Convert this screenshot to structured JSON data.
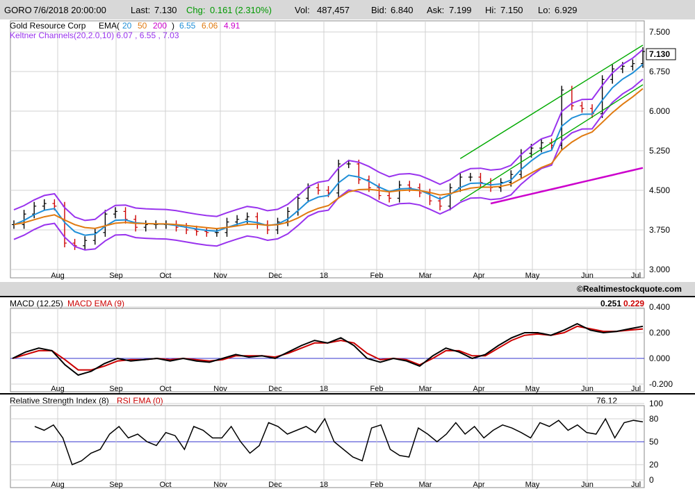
{
  "header": {
    "symbol": "GORO",
    "datetime": "7/6/2018 20:00:00",
    "last_label": "Last:",
    "last": "7.130",
    "chg_label": "Chg:",
    "chg": "0.161 (2.310%)",
    "vol_label": "Vol:",
    "vol": "487,457",
    "bid_label": "Bid:",
    "bid": "6.840",
    "ask_label": "Ask:",
    "ask": "7.199",
    "hi_label": "Hi:",
    "hi": "7.150",
    "lo_label": "Lo:",
    "lo": "6.929"
  },
  "colors": {
    "ema20": "#1f8fd8",
    "ema50": "#e07a10",
    "ema200": "#cc00cc",
    "keltner": "#9933ee",
    "channel": "#00aa00",
    "macd": "#000000",
    "macd_ema": "#cc0000",
    "baseline": "#3333cc",
    "header_bg": "#d8d8d8",
    "chg": "#009900",
    "up_bar": "#000000",
    "down_bar": "#cc0000"
  },
  "price_panel": {
    "company": "Gold Resource Corp",
    "ema_label": "EMA(",
    "ema_periods": [
      "20",
      "50",
      "200"
    ],
    "ema_values": [
      "6.55",
      "6.06",
      "4.91"
    ],
    "keltner_label": "Keltner Channels(20,2.0,10) 6.07 , 6.55 , 7.03",
    "last_price_tag": "7.130",
    "y_ticks": [
      "7.500",
      "6.750",
      "6.000",
      "5.250",
      "4.500",
      "3.750",
      "3.000"
    ],
    "watermark": "©Realtimestockquote.com"
  },
  "x_labels": [
    "Aug",
    "Sep",
    "Oct",
    "Nov",
    "Dec",
    "18",
    "Feb",
    "Mar",
    "Apr",
    "May",
    "Jun",
    "Jul"
  ],
  "macd_panel": {
    "label": "MACD (12,25)",
    "ema_label": "MACD EMA (9)",
    "value1": "0.251",
    "value2": "0.229",
    "y_ticks": [
      "0.400",
      "0.200",
      "0.000",
      "-0.200"
    ]
  },
  "rsi_panel": {
    "label": "Relative Strength Index (8)",
    "ema_label": "RSI EMA (0)",
    "value": "76.12",
    "y_ticks": [
      "100",
      "80",
      "50",
      "20",
      "0"
    ]
  },
  "chart_data": [
    {
      "type": "candlestick",
      "title": "Gold Resource Corp",
      "ylim": [
        3.0,
        7.5
      ],
      "series": [
        {
          "name": "Price",
          "x": [
            "2018-07-06"
          ],
          "values": [
            7.13
          ]
        },
        {
          "name": "EMA 20",
          "x": [
            "2018-07-06"
          ],
          "values": [
            6.55
          ]
        },
        {
          "name": "EMA 50",
          "x": [
            "2018-07-06"
          ],
          "values": [
            6.06
          ]
        },
        {
          "name": "EMA 200",
          "x": [
            "2018-07-06"
          ],
          "values": [
            4.91
          ]
        },
        {
          "name": "Keltner lower",
          "x": [
            "2018-07-06"
          ],
          "values": [
            6.07
          ]
        },
        {
          "name": "Keltner middle",
          "x": [
            "2018-07-06"
          ],
          "values": [
            6.55
          ]
        },
        {
          "name": "Keltner upper",
          "x": [
            "2018-07-06"
          ],
          "values": [
            7.03
          ]
        }
      ],
      "price_path": [
        3.85,
        4.05,
        4.2,
        4.25,
        4.2,
        3.5,
        3.45,
        3.55,
        3.7,
        4.05,
        4.1,
        3.95,
        3.8,
        3.85,
        3.85,
        3.85,
        3.8,
        3.75,
        3.72,
        3.7,
        3.7,
        3.9,
        3.95,
        4.0,
        3.85,
        3.75,
        3.9,
        4.1,
        4.35,
        4.55,
        4.5,
        4.45,
        5.0,
        5.0,
        4.7,
        4.55,
        4.4,
        4.35,
        4.6,
        4.55,
        4.45,
        4.3,
        4.2,
        4.55,
        4.75,
        4.75,
        4.65,
        4.55,
        4.65,
        4.8,
        5.2,
        5.3,
        5.4,
        5.35,
        6.4,
        6.1,
        6.05,
        5.95,
        6.6,
        6.8,
        6.85,
        6.9,
        7.13
      ],
      "price_path_note": "x by week from Jul 2017 to Jul 2018"
    },
    {
      "type": "line",
      "title": "MACD (12,25)",
      "ylim": [
        -0.2,
        0.4
      ],
      "series": [
        {
          "name": "MACD",
          "x": [
            "2018-07-06"
          ],
          "values": [
            0.251
          ]
        },
        {
          "name": "MACD EMA",
          "x": [
            "2018-07-06"
          ],
          "values": [
            0.229
          ]
        }
      ],
      "macd_path": [
        0.0,
        0.05,
        0.08,
        0.06,
        -0.05,
        -0.13,
        -0.1,
        -0.04,
        0.0,
        -0.02,
        -0.01,
        0.0,
        -0.02,
        0.0,
        -0.02,
        -0.03,
        0.0,
        0.03,
        0.01,
        0.02,
        0.0,
        0.05,
        0.1,
        0.14,
        0.12,
        0.16,
        0.1,
        0.0,
        -0.03,
        0.0,
        -0.02,
        -0.06,
        0.02,
        0.08,
        0.05,
        0.0,
        0.03,
        0.1,
        0.16,
        0.2,
        0.2,
        0.18,
        0.22,
        0.27,
        0.22,
        0.2,
        0.21,
        0.23,
        0.25
      ],
      "signal_path": [
        0.0,
        0.03,
        0.06,
        0.06,
        -0.01,
        -0.09,
        -0.09,
        -0.06,
        -0.02,
        -0.01,
        -0.01,
        0.0,
        -0.01,
        0.0,
        -0.01,
        -0.02,
        -0.01,
        0.02,
        0.02,
        0.02,
        0.01,
        0.04,
        0.08,
        0.12,
        0.12,
        0.14,
        0.12,
        0.04,
        -0.01,
        0.0,
        -0.01,
        -0.05,
        0.0,
        0.06,
        0.06,
        0.02,
        0.02,
        0.08,
        0.14,
        0.18,
        0.19,
        0.18,
        0.2,
        0.25,
        0.23,
        0.21,
        0.21,
        0.22,
        0.229
      ]
    },
    {
      "type": "line",
      "title": "Relative Strength Index (8)",
      "ylim": [
        0,
        100
      ],
      "series": [
        {
          "name": "RSI",
          "x": [
            "2018-07-06"
          ],
          "values": [
            76.12
          ]
        }
      ],
      "rsi_path": [
        70,
        65,
        72,
        55,
        20,
        25,
        35,
        40,
        60,
        70,
        55,
        60,
        50,
        45,
        62,
        58,
        40,
        70,
        65,
        55,
        55,
        70,
        50,
        35,
        45,
        75,
        70,
        60,
        65,
        70,
        62,
        80,
        50,
        40,
        30,
        25,
        68,
        72,
        40,
        32,
        30,
        68,
        60,
        50,
        60,
        75,
        60,
        70,
        55,
        65,
        72,
        68,
        62,
        55,
        75,
        70,
        78,
        65,
        72,
        62,
        60,
        80,
        55,
        75,
        78,
        76
      ]
    }
  ]
}
